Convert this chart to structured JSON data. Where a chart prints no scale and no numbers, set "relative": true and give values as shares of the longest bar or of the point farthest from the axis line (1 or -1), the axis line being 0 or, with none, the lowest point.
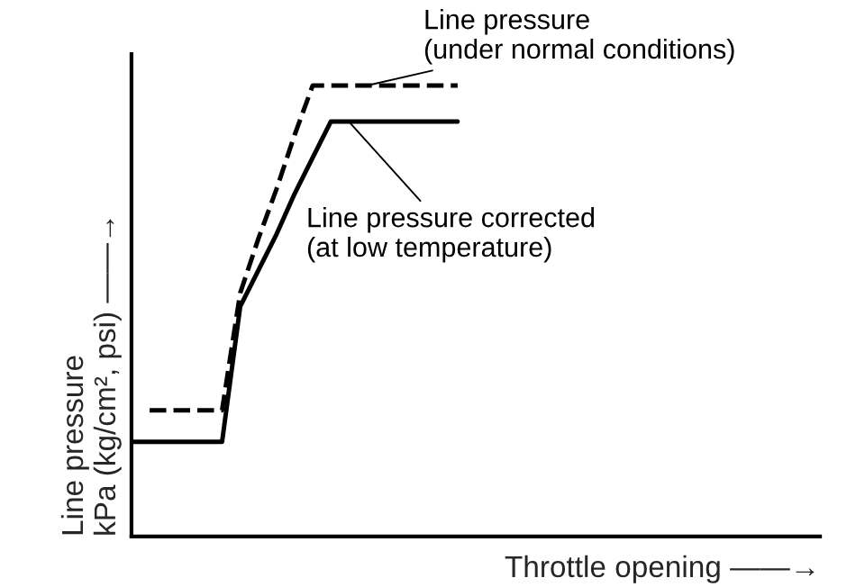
{
  "chart_data": {
    "type": "line",
    "relative": true,
    "xlabel": "Throttle opening ——→",
    "ylabel": "Line pressure\nkPa (kg/cm², psi) ——→",
    "legend": false,
    "categories": [
      null,
      null,
      null,
      null,
      null,
      null,
      null,
      null,
      null,
      null,
      null,
      null,
      null,
      null,
      null,
      null,
      null,
      null,
      null,
      null,
      null,
      null,
      null,
      null,
      null,
      null,
      null,
      null,
      null,
      null,
      null,
      null,
      null,
      null,
      null,
      null,
      null,
      null,
      null
    ],
    "series": [
      {
        "name": "Line pressure\n(under normal conditions)",
        "color": "#000000",
        "line_style": "dashed",
        "values": [
          null,
          0.28,
          0.28,
          0.28,
          0.28,
          0.28,
          0.54,
          0.66,
          0.77,
          0.89,
          1.0,
          1.0,
          1.0,
          1.0,
          1.0,
          1.0,
          1.0,
          1.0,
          1.0,
          null,
          null,
          null,
          null,
          null,
          null,
          null,
          null,
          null,
          null,
          null,
          null,
          null,
          null,
          null,
          null,
          null,
          null,
          null,
          null
        ]
      },
      {
        "name": "Line pressure corrected\n(at low temperature)",
        "color": "#000000",
        "line_style": "solid",
        "values": [
          0.21,
          0.21,
          0.21,
          0.21,
          0.21,
          0.21,
          0.51,
          0.59,
          0.67,
          0.76,
          0.84,
          0.92,
          0.92,
          0.92,
          0.92,
          0.92,
          0.92,
          0.92,
          0.92,
          null,
          null,
          null,
          null,
          null,
          null,
          null,
          null,
          null,
          null,
          null,
          null,
          null,
          null,
          null,
          null,
          null,
          null,
          null,
          null
        ]
      }
    ]
  }
}
